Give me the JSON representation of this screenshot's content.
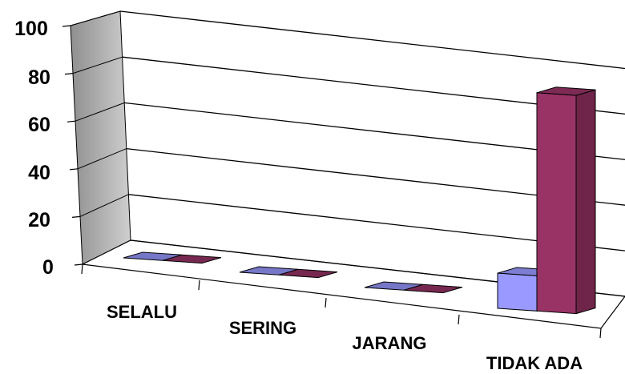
{
  "chart_data": {
    "type": "bar",
    "style": "3d-clustered-column",
    "categories": [
      "SELALU",
      "SERING",
      "JARANG",
      "TIDAK ADA"
    ],
    "series": [
      {
        "color": "#9999FF",
        "values": [
          0,
          0,
          0,
          15
        ]
      },
      {
        "color": "#993366",
        "values": [
          0,
          0,
          0,
          93
        ]
      }
    ],
    "y_ticks": [
      "0",
      "20",
      "40",
      "60",
      "80",
      "100"
    ],
    "ylim": [
      0,
      100
    ],
    "grid": true,
    "legend": "none",
    "title": "",
    "xlabel": "",
    "ylabel": ""
  }
}
